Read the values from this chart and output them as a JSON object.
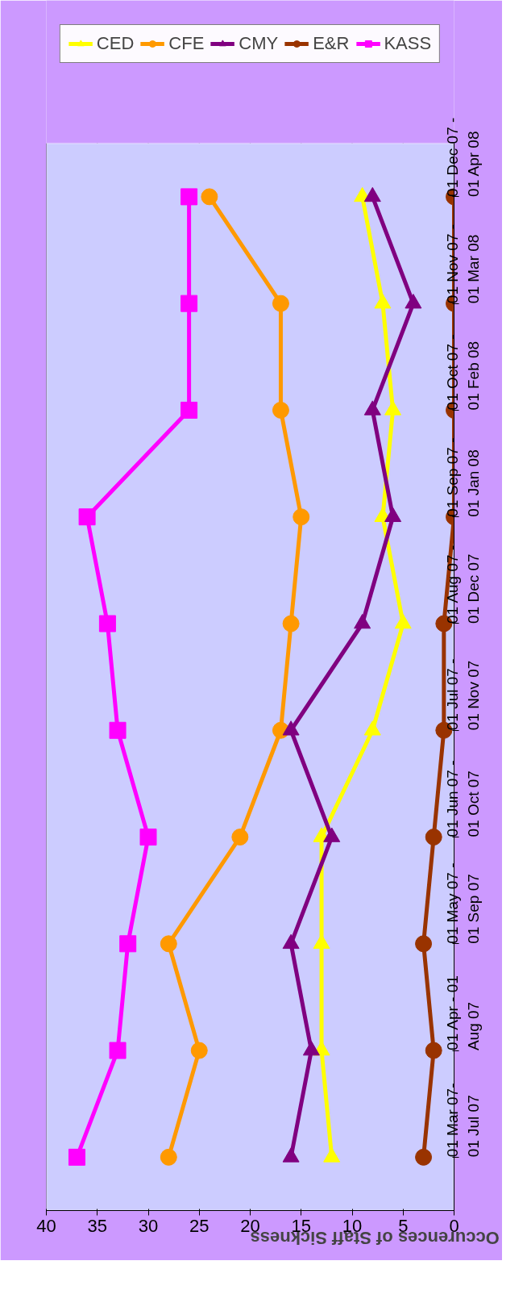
{
  "chart_data": {
    "type": "line",
    "orientation": "horizontal",
    "xlabel": "Occurences of Staff Sickness",
    "categories": [
      "01 Dec 07 - 01 Apr 08",
      "01 Nov 07 - 01 Mar 08",
      "01 Oct 07 - 01 Feb 08",
      "01 Sep 07 - 01 Jan 08",
      "01 Aug 07 - 01 Dec 07",
      "01 Jul 07 - 01 Nov 07",
      "01 Jun 07 - 01 Oct 07",
      "01 May 07 - 01 Sep 07",
      "01 Apr - 01 Aug 07",
      "01 Mar 07- 01 Jul 07"
    ],
    "series": [
      {
        "name": "CED",
        "color": "#ffff00",
        "marker": "triangle",
        "values": [
          9,
          7,
          6,
          7,
          5,
          8,
          13,
          13,
          13,
          12
        ]
      },
      {
        "name": "CFE",
        "color": "#ff9900",
        "marker": "circle",
        "values": [
          24,
          17,
          17,
          15,
          16,
          17,
          21,
          28,
          25,
          28
        ]
      },
      {
        "name": "CMY",
        "color": "#800080",
        "marker": "triangle",
        "values": [
          8,
          4,
          8,
          6,
          9,
          16,
          12,
          16,
          14,
          16
        ]
      },
      {
        "name": "E&R",
        "color": "#993300",
        "marker": "circle",
        "values": [
          0,
          0,
          0,
          0,
          1,
          1,
          2,
          3,
          2,
          3
        ]
      },
      {
        "name": "KASS",
        "color": "#ff00ff",
        "marker": "square",
        "values": [
          26,
          26,
          26,
          36,
          34,
          33,
          30,
          32,
          33,
          37
        ]
      }
    ],
    "xlim": [
      40,
      0
    ],
    "xticks": [
      40,
      35,
      30,
      25,
      20,
      15,
      10,
      5,
      0
    ],
    "grid": "x",
    "legend": "top"
  }
}
